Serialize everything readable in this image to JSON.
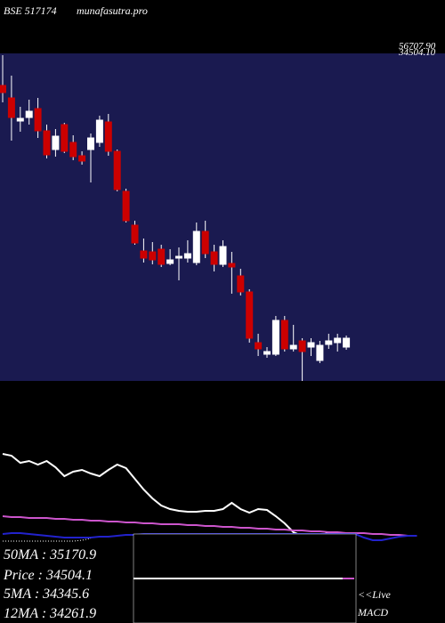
{
  "chart_data": [
    {
      "type": "candlestick",
      "title": "BSE 517174",
      "subtitle": "munafasutra.pro",
      "price_labels": [
        "56707.90",
        "34504.10"
      ],
      "up_color": "#ffffff",
      "down_color": "#cc0000",
      "background": "#1a1a50",
      "ylim": [
        31240,
        57000
      ],
      "open": [
        54480,
        53500,
        51680,
        51960,
        52660,
        50910,
        49440,
        51400,
        50000,
        48950,
        49440,
        50000,
        51610,
        49300,
        46150,
        43490,
        41460,
        41390,
        41600,
        40480,
        40900,
        40900,
        40550,
        43000,
        41390,
        40410,
        40480,
        39500,
        38240,
        34250,
        33340,
        33340,
        36000,
        33760,
        34390,
        33900,
        32850,
        34110,
        34250,
        33900
      ],
      "high": [
        56860,
        55250,
        52800,
        53360,
        53500,
        51400,
        51050,
        51540,
        50560,
        49300,
        50700,
        52100,
        52240,
        49440,
        46360,
        43840,
        42440,
        42160,
        41950,
        41600,
        41740,
        42300,
        43700,
        43840,
        41950,
        42300,
        41390,
        40060,
        38450,
        34950,
        33900,
        36350,
        36350,
        35650,
        34600,
        34600,
        34390,
        34950,
        34950,
        34810
      ],
      "low": [
        53150,
        50140,
        50840,
        51400,
        50350,
        48740,
        48880,
        49160,
        48600,
        48250,
        46850,
        49650,
        48950,
        46150,
        43700,
        41950,
        40550,
        40410,
        40200,
        40340,
        39150,
        40550,
        40340,
        40900,
        39850,
        40200,
        38100,
        37960,
        34250,
        33200,
        33060,
        33200,
        33550,
        33550,
        31240,
        33200,
        32640,
        33760,
        33550,
        33690
      ],
      "close": [
        53920,
        51960,
        51890,
        52450,
        50910,
        49020,
        50490,
        49300,
        48880,
        48530,
        50350,
        51750,
        49300,
        46290,
        43840,
        42090,
        40900,
        40760,
        40410,
        40760,
        41040,
        41250,
        43000,
        41250,
        40410,
        41810,
        40200,
        38240,
        34600,
        33760,
        33550,
        36000,
        33760,
        34040,
        33550,
        34250,
        34040,
        34390,
        34600,
        34600
      ]
    },
    {
      "type": "line",
      "ylim": [
        0,
        270
      ],
      "annotations": [
        "50MA : 35170.9",
        "Price : 34504.1",
        "5MA : 34345.6",
        "12MA : 34261.9",
        "<<Live",
        "MACD"
      ],
      "series": [
        {
          "color": "#ffffff",
          "values": [
            190,
            188,
            180,
            182,
            178,
            182,
            175,
            165,
            170,
            172,
            168,
            165,
            172,
            178,
            174,
            162,
            150,
            140,
            132,
            128,
            126,
            125,
            125,
            126,
            126,
            128,
            135,
            128,
            124,
            128,
            127,
            120,
            112,
            102,
            98,
            100,
            97,
            102,
            97,
            95
          ]
        },
        {
          "color": "#cc55cc",
          "values": [
            120,
            119,
            119,
            118,
            118,
            118,
            117,
            117,
            116,
            116,
            115,
            115,
            114,
            114,
            113,
            113,
            112,
            112,
            111,
            111,
            111,
            110,
            110,
            109,
            109,
            108,
            108,
            107,
            107,
            106,
            106,
            105,
            105,
            104,
            104,
            103,
            103,
            102,
            102,
            101,
            101,
            101,
            100,
            100,
            99,
            99,
            98,
            98
          ]
        },
        {
          "color": "#2222cc",
          "values": [
            100,
            101,
            101,
            100,
            99,
            98,
            97,
            96,
            96,
            96,
            96,
            97,
            97,
            98,
            99,
            99,
            100,
            100,
            100,
            100,
            100,
            100,
            100,
            100,
            100,
            100,
            100,
            100,
            100,
            100,
            100,
            100,
            100,
            100,
            100,
            100,
            100,
            100,
            100,
            100,
            100,
            96,
            93,
            93,
            95,
            97,
            98,
            98
          ]
        },
        {
          "color": "#ffffff",
          "dashed": true,
          "values": [
            92,
            92,
            92,
            92,
            92,
            92,
            92,
            92,
            92,
            93,
            95
          ]
        }
      ]
    }
  ]
}
